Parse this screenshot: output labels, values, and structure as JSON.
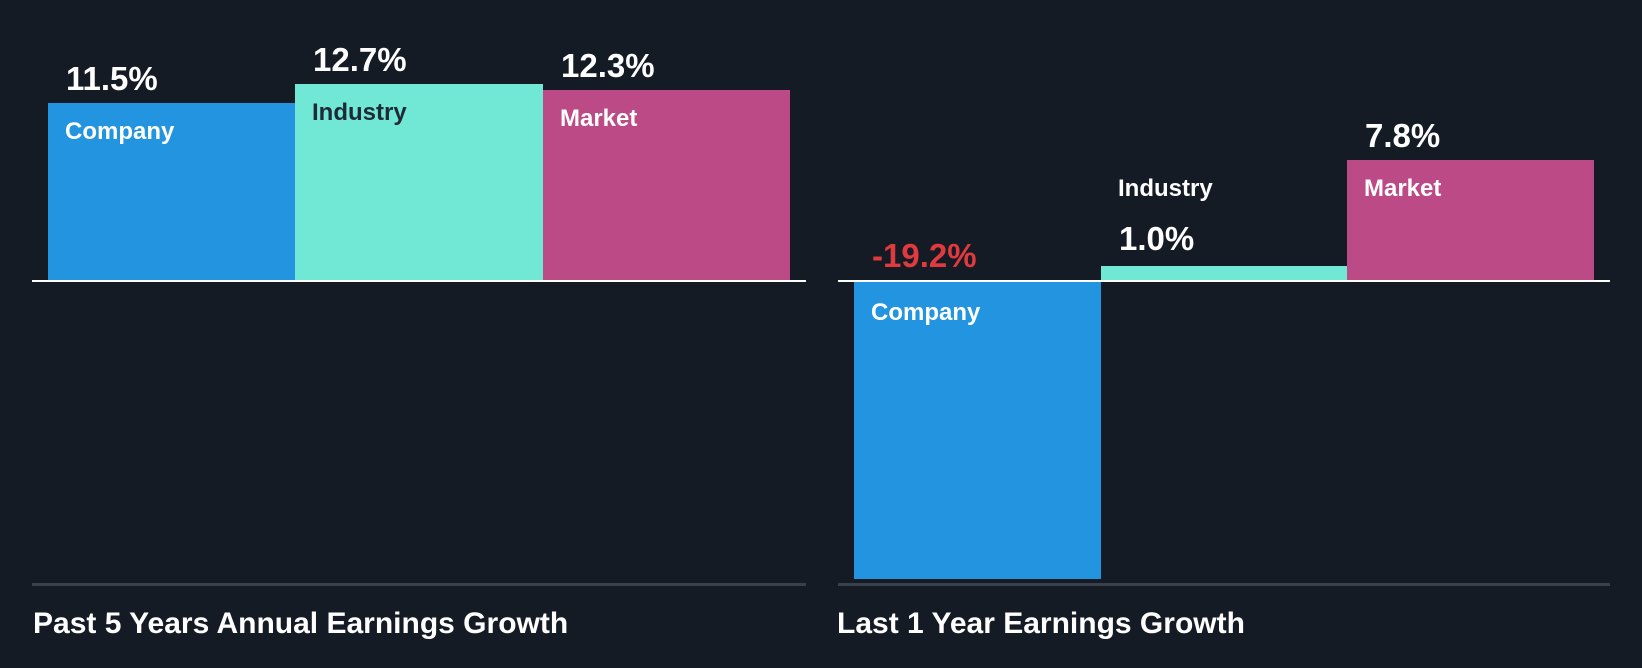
{
  "colors": {
    "background": "#151b24",
    "company": "#2394df",
    "industry": "#71e7d6",
    "market": "#bb4a86",
    "negative_value": "#e0393e",
    "text": "#ffffff",
    "industry_label_on_bar": "#1f2a36",
    "baseline": "#ffffff",
    "bottom_line": "#3b414b"
  },
  "chart_data": [
    {
      "type": "bar",
      "title": "Past 5 Years Annual Earnings Growth",
      "categories": [
        "Company",
        "Industry",
        "Market"
      ],
      "values": [
        11.5,
        12.7,
        12.3
      ],
      "value_labels": [
        "11.5%",
        "12.7%",
        "12.3%"
      ],
      "xlabel": "",
      "ylabel": "",
      "unit": "%",
      "grid": false,
      "legend": "none (labels inside bars)"
    },
    {
      "type": "bar",
      "title": "Last 1 Year Earnings Growth",
      "categories": [
        "Company",
        "Industry",
        "Market"
      ],
      "values": [
        -19.2,
        1.0,
        7.8
      ],
      "value_labels": [
        "-19.2%",
        "1.0%",
        "7.8%"
      ],
      "xlabel": "",
      "ylabel": "",
      "unit": "%",
      "grid": false,
      "legend": "none (labels inside bars)"
    }
  ],
  "panels": [
    {
      "title": "Past 5 Years Annual Earnings Growth",
      "bars": [
        {
          "label": "Company",
          "value_text": "11.5%"
        },
        {
          "label": "Industry",
          "value_text": "12.7%"
        },
        {
          "label": "Market",
          "value_text": "12.3%"
        }
      ]
    },
    {
      "title": "Last 1 Year Earnings Growth",
      "bars": [
        {
          "label": "Company",
          "value_text": "-19.2%"
        },
        {
          "label": "Industry",
          "value_text": "1.0%"
        },
        {
          "label": "Market",
          "value_text": "7.8%"
        }
      ]
    }
  ]
}
